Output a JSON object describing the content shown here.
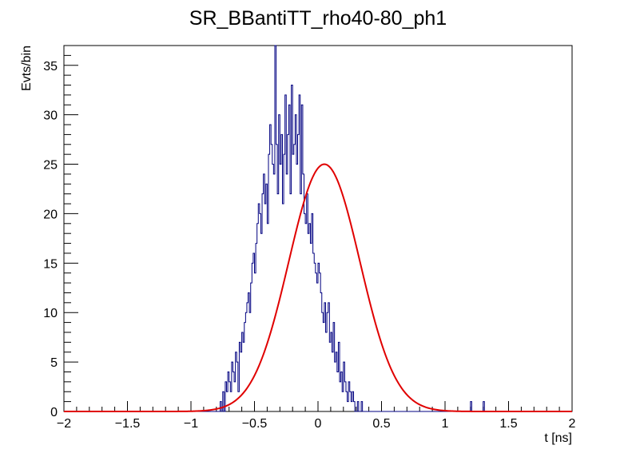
{
  "chart_data": {
    "type": "histogram",
    "title": "SR_BBantiTT_rho40-80_ph1",
    "xlabel": "t [ns]",
    "ylabel": "Evts/bin",
    "xlim": [
      -2,
      2
    ],
    "ylim": [
      0,
      37
    ],
    "bin_width": 0.01,
    "x_ticks": [
      -2,
      -1.5,
      -1,
      -0.5,
      0,
      0.5,
      1,
      1.5,
      2
    ],
    "x_tick_labels": [
      "−2",
      "−1.5",
      "−1",
      "−0.5",
      "0",
      "0.5",
      "1",
      "1.5",
      "2"
    ],
    "y_ticks": [
      0,
      5,
      10,
      15,
      20,
      25,
      30,
      35
    ],
    "y_tick_labels": [
      "0",
      "5",
      "10",
      "15",
      "20",
      "25",
      "30",
      "35"
    ],
    "histogram": {
      "color": "#000080",
      "x_start": -0.78,
      "values": [
        0,
        1,
        0,
        2,
        0,
        3,
        2,
        4,
        3,
        2,
        5,
        4,
        3,
        6,
        5,
        2,
        7,
        6,
        8,
        7,
        9,
        10,
        11,
        12,
        10,
        13,
        15,
        16,
        14,
        17,
        19,
        21,
        20,
        18,
        22,
        24,
        21,
        23,
        19,
        26,
        29,
        27,
        25,
        24,
        37,
        27,
        22,
        30,
        25,
        28,
        21,
        26,
        32,
        24,
        28,
        31,
        22,
        33,
        26,
        27,
        30,
        25,
        28,
        32,
        22,
        31,
        24,
        20,
        19,
        22,
        18,
        19,
        17,
        20,
        16,
        15,
        14,
        13,
        15,
        14,
        12,
        10,
        9,
        11,
        8,
        10,
        11,
        7,
        8,
        6,
        9,
        5,
        6,
        4,
        7,
        3,
        4,
        2,
        5,
        3,
        2,
        1,
        3,
        2,
        1,
        2,
        1,
        0,
        0,
        1,
        0,
        0,
        1,
        0
      ]
    },
    "fit": {
      "color": "#e00000",
      "type": "gaussian",
      "amplitude": 25,
      "mean": 0.05,
      "sigma": 0.28
    }
  }
}
